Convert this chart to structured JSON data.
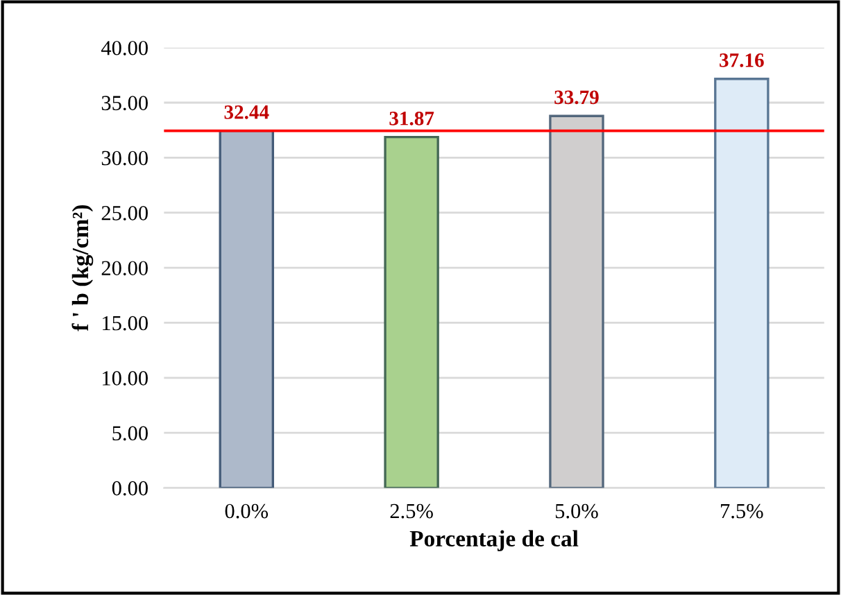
{
  "chart_data": {
    "type": "bar",
    "categories": [
      "0.0%",
      "2.5%",
      "5.0%",
      "7.5%"
    ],
    "values": [
      32.44,
      31.87,
      33.79,
      37.16
    ],
    "colors": [
      "#adb9ca",
      "#a9d18e",
      "#d0cece",
      "#deebf7"
    ],
    "xlabel": "Porcentaje de cal",
    "ylabel": "f ' b (kg/cm²)",
    "ylim": [
      0,
      40
    ],
    "yticks": [
      {
        "value": 0,
        "label": "0.00"
      },
      {
        "value": 5,
        "label": "5.00"
      },
      {
        "value": 10,
        "label": "10.00"
      },
      {
        "value": 15,
        "label": "15.00"
      },
      {
        "value": 20,
        "label": "20.00"
      },
      {
        "value": 25,
        "label": "25.00"
      },
      {
        "value": 30,
        "label": "30.00"
      },
      {
        "value": 35,
        "label": "35.00"
      },
      {
        "value": 40,
        "label": "40.00"
      }
    ],
    "ref_lines": [
      {
        "axis": "y",
        "value": 32.44,
        "color": "#ff0000"
      }
    ],
    "data_labels": true,
    "grid": "y",
    "legend": false
  }
}
